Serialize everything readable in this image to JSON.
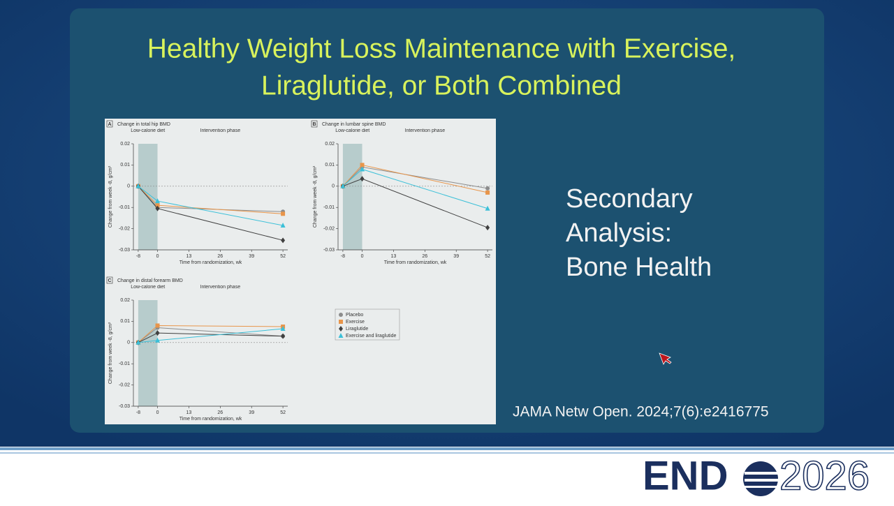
{
  "slide": {
    "title": "Healthy Weight Loss Maintenance with Exercise,",
    "title_line2": "Liraglutide, or Both Combined",
    "side_text": [
      "Secondary",
      "Analysis:",
      "Bone Health"
    ],
    "citation": "JAMA Netw Open. 2024;7(6):e2416775",
    "logo_left": "END",
    "logo_right": "2026"
  },
  "chart_data": [
    {
      "type": "line",
      "panel_label": "A",
      "title": "Change in total hip BMD",
      "annotations": [
        "Low-calorie diet",
        "Intervention phase"
      ],
      "xlabel": "Time from randomization, wk",
      "ylabel": "Change from week -8, g/cm²",
      "x": [
        -8,
        0,
        52
      ],
      "xlim": [
        -10,
        54
      ],
      "xticks": [
        -8,
        0,
        13,
        26,
        39,
        52
      ],
      "ylim": [
        -0.03,
        0.02
      ],
      "yticks": [
        -0.03,
        -0.02,
        -0.01,
        0,
        0.01,
        0.02
      ],
      "series": [
        {
          "color": "#8c8c8c",
          "marker": "circle",
          "values": [
            0,
            -0.01,
            -0.012
          ]
        },
        {
          "color": "#e8954a",
          "marker": "square",
          "values": [
            0,
            -0.009,
            -0.013
          ]
        },
        {
          "color": "#404040",
          "marker": "diamond",
          "values": [
            0,
            -0.0105,
            -0.0255
          ]
        },
        {
          "color": "#3cc0d8",
          "marker": "triangle",
          "values": [
            0,
            -0.007,
            -0.0185
          ]
        }
      ]
    },
    {
      "type": "line",
      "panel_label": "B",
      "title": "Change in lumbar spine BMD",
      "annotations": [
        "Low-calorie diet",
        "Intervention phase"
      ],
      "xlabel": "Time from randomization, wk",
      "ylabel": "Change from week -8, g/cm²",
      "x": [
        -8,
        0,
        52
      ],
      "xlim": [
        -10,
        54
      ],
      "xticks": [
        -8,
        0,
        13,
        26,
        39,
        52
      ],
      "ylim": [
        -0.03,
        0.02
      ],
      "yticks": [
        -0.03,
        -0.02,
        -0.01,
        0,
        0.01,
        0.02
      ],
      "series": [
        {
          "color": "#8c8c8c",
          "marker": "circle",
          "values": [
            0,
            0.009,
            -0.001
          ]
        },
        {
          "color": "#e8954a",
          "marker": "square",
          "values": [
            0,
            0.01,
            -0.003
          ]
        },
        {
          "color": "#404040",
          "marker": "diamond",
          "values": [
            0,
            0.0035,
            -0.0195
          ]
        },
        {
          "color": "#3cc0d8",
          "marker": "triangle",
          "values": [
            0,
            0.008,
            -0.0105
          ]
        }
      ]
    },
    {
      "type": "line",
      "panel_label": "C",
      "title": "Change in distal forearm BMD",
      "annotations": [
        "Low-calorie diet",
        "Intervention phase"
      ],
      "xlabel": "Time from randomization, wk",
      "ylabel": "Change from week -8, g/cm²",
      "x": [
        -8,
        0,
        52
      ],
      "xlim": [
        -10,
        54
      ],
      "xticks": [
        -8,
        0,
        13,
        26,
        39,
        52
      ],
      "ylim": [
        -0.03,
        0.02
      ],
      "yticks": [
        -0.03,
        -0.02,
        -0.01,
        0,
        0.01,
        0.02
      ],
      "legend": "right",
      "series": [
        {
          "name": "Placebo",
          "color": "#8c8c8c",
          "marker": "circle",
          "values": [
            0,
            0.007,
            0.003
          ]
        },
        {
          "name": "Exercise",
          "color": "#e8954a",
          "marker": "square",
          "values": [
            0,
            0.008,
            0.0075
          ]
        },
        {
          "name": "Liraglutide",
          "color": "#404040",
          "marker": "diamond",
          "values": [
            0,
            0.0045,
            0.003
          ]
        },
        {
          "name": "Exercise and liraglutide",
          "color": "#3cc0d8",
          "marker": "triangle",
          "values": [
            0,
            0.001,
            0.0065
          ]
        }
      ]
    }
  ]
}
